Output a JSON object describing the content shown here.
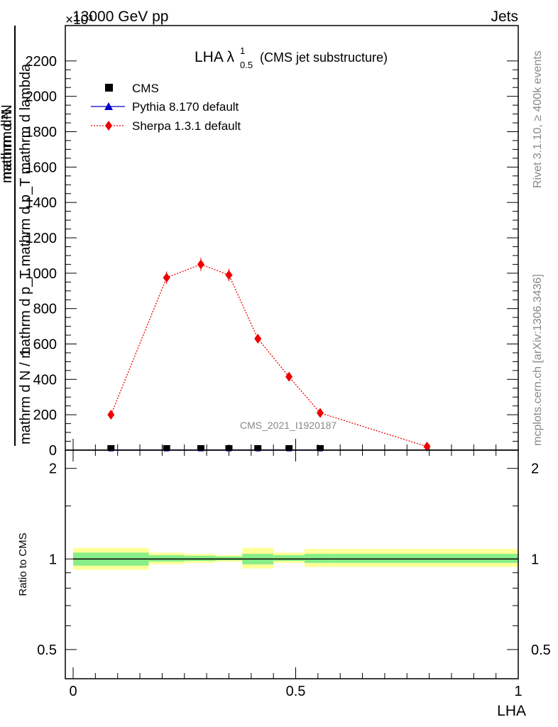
{
  "header": {
    "left": "13000 GeV pp",
    "right": "Jets"
  },
  "exponent": "×10³",
  "side_labels": {
    "rivet": "Rivet 3.1.10, ≥ 400k events",
    "mcplots": "mcplots.cern.ch [arXiv:1306.3436]"
  },
  "watermark": "CMS_2021_I1920187",
  "title": {
    "main": "LHA λ",
    "sup": "1",
    "sub": "0.5",
    "paren": "(CMS jet substructure)"
  },
  "legend": [
    {
      "name": "CMS"
    },
    {
      "name": "Pythia 8.170 default"
    },
    {
      "name": "Sherpa 1.3.1 default"
    }
  ],
  "y_axis_label": {
    "num_top": "1",
    "den_top": "mathrm d N / mathrm d p_T mathrm d p_T mathrm d lambda",
    "den_bottom": "mathrm d N",
    "num_bottom": "mathrm d²N"
  },
  "ratio_ylabel": "Ratio to CMS",
  "xlabel": "LHA",
  "colors": {
    "cms": "#000000",
    "pythia": "#0000cc",
    "sherpa": "#ee0000",
    "band_outer": "#ffff99",
    "band_inner": "#88ee88"
  },
  "chart_data": [
    {
      "type": "scatter",
      "panel": "main",
      "xlim": [
        -0.02,
        1.02
      ],
      "ylim": [
        0,
        2400
      ],
      "yticks": [
        0,
        200,
        400,
        600,
        800,
        1000,
        1200,
        1400,
        1600,
        1800,
        2000,
        2200
      ],
      "ytick_labels": [
        "0",
        "200",
        "400",
        "600",
        "800",
        "1000",
        "1200",
        "1400",
        "1600",
        "1800",
        "2000",
        "2200"
      ],
      "series": [
        {
          "name": "CMS",
          "x": [
            0.085,
            0.21,
            0.287,
            0.35,
            0.415,
            0.485,
            0.555
          ],
          "y": [
            4,
            4,
            4,
            4,
            4,
            4,
            4
          ]
        },
        {
          "name": "Pythia 8.170 default",
          "x": [
            0.085,
            0.21,
            0.287,
            0.35,
            0.415,
            0.485,
            0.555
          ],
          "y": [
            1,
            1,
            1,
            1,
            1,
            1,
            1
          ]
        },
        {
          "name": "Sherpa 1.3.1 default",
          "x": [
            0.085,
            0.21,
            0.287,
            0.35,
            0.415,
            0.485,
            0.555,
            0.795
          ],
          "y": [
            200,
            975,
            1050,
            990,
            630,
            415,
            210,
            20
          ],
          "yerr": [
            12,
            35,
            38,
            36,
            25,
            20,
            12,
            5
          ]
        }
      ]
    },
    {
      "type": "area",
      "panel": "ratio",
      "ylabel": "Ratio to CMS",
      "xlabel": "LHA",
      "xlim": [
        -0.02,
        1.02
      ],
      "ylim": [
        0.4,
        2.3
      ],
      "log_y": true,
      "yticks": [
        0.5,
        1,
        2
      ],
      "ytick_labels": [
        "0.5",
        "1",
        "2"
      ],
      "xticks": [
        0,
        0.5,
        1
      ],
      "xtick_labels": [
        "0",
        "0.5",
        "1"
      ],
      "reference": 1,
      "bins": [
        {
          "x0": 0.0,
          "x1": 0.17,
          "outer": [
            0.92,
            1.09
          ],
          "inner": [
            0.95,
            1.05
          ]
        },
        {
          "x0": 0.17,
          "x1": 0.25,
          "outer": [
            0.96,
            1.05
          ],
          "inner": [
            0.98,
            1.03
          ]
        },
        {
          "x0": 0.25,
          "x1": 0.32,
          "outer": [
            0.97,
            1.04
          ],
          "inner": [
            0.985,
            1.025
          ]
        },
        {
          "x0": 0.32,
          "x1": 0.38,
          "outer": [
            0.98,
            1.03
          ],
          "inner": [
            0.99,
            1.02
          ]
        },
        {
          "x0": 0.38,
          "x1": 0.45,
          "outer": [
            0.93,
            1.09
          ],
          "inner": [
            0.96,
            1.04
          ]
        },
        {
          "x0": 0.45,
          "x1": 0.52,
          "outer": [
            0.97,
            1.05
          ],
          "inner": [
            0.985,
            1.03
          ]
        },
        {
          "x0": 0.52,
          "x1": 0.59,
          "outer": [
            0.94,
            1.08
          ],
          "inner": [
            0.97,
            1.04
          ]
        },
        {
          "x0": 0.59,
          "x1": 1.0,
          "outer": [
            0.94,
            1.08
          ],
          "inner": [
            0.97,
            1.04
          ]
        }
      ]
    }
  ]
}
